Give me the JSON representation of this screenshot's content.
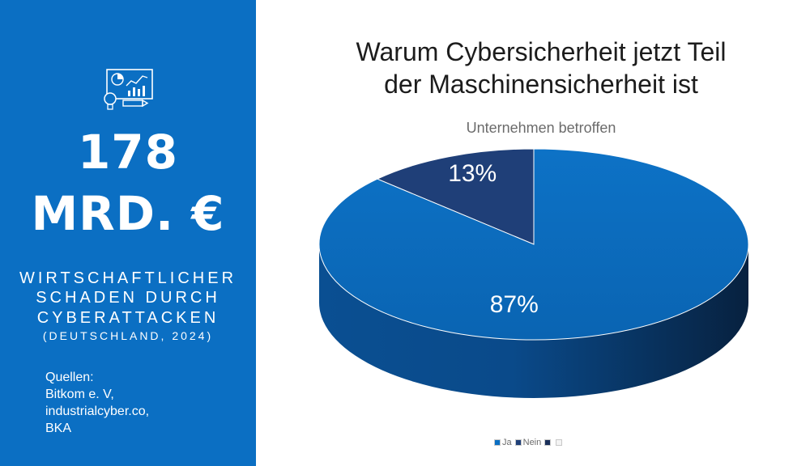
{
  "panel": {
    "icon": "presentation-analytics-icon",
    "amount_line1": "178",
    "amount_line2": "MRD. €",
    "caption_lines": [
      "WIRTSCHAFTLICHER",
      "SCHADEN DURCH",
      "CYBERATTACKEN",
      "(DEUTSCHLAND, 2024)"
    ],
    "sources_lines": [
      "Quellen:",
      "Bitkom e. V,",
      "industrialcyber.co,",
      "BKA"
    ],
    "background": "#0b6fc3"
  },
  "chart_data": {
    "type": "pie",
    "style": "3d",
    "title_lines": [
      "Warum Cybersicherheit jetzt Teil",
      "der Maschinensicherheit ist"
    ],
    "subtitle": "Unternehmen betroffen",
    "slices": [
      {
        "label": "Ja",
        "value": 87,
        "display": "87%",
        "color": "#0b6fc3"
      },
      {
        "label": "Nein",
        "value": 13,
        "display": "13%",
        "color": "#1f3f78"
      }
    ],
    "legend_position": "bottom",
    "legend_extra_item": ""
  }
}
